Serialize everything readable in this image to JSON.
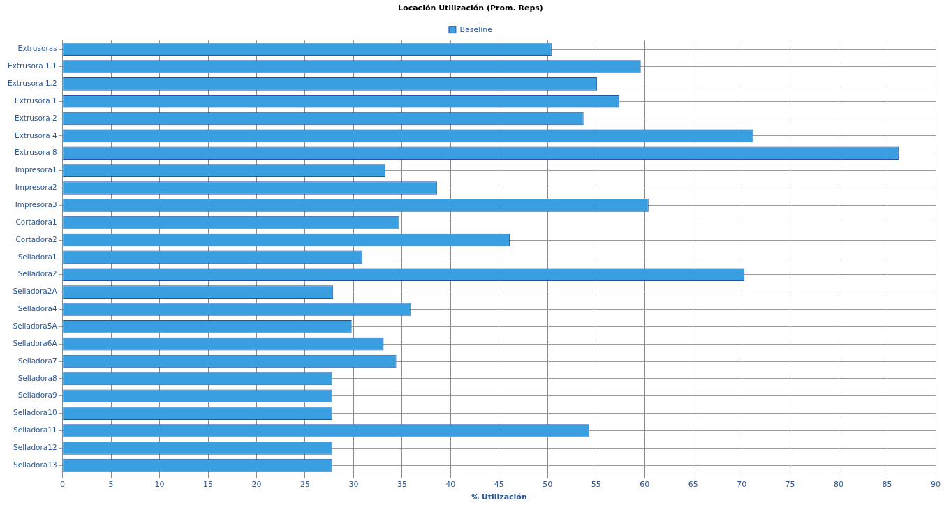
{
  "chart_data": {
    "type": "bar",
    "orientation": "horizontal",
    "title": "Locación Utilización (Prom. Reps)",
    "xlabel": "% Utilización",
    "categories": [
      "Extrusoras",
      "Extrusora 1.1",
      "Extrusora 1.2",
      "Extrusora 1",
      "Extrusora 2",
      "Extrusora 4",
      "Extrusora 8",
      "Impresora1",
      "Impresora2",
      "Impresora3",
      "Cortadora1",
      "Cortadora2",
      "Selladora1",
      "Selladora2",
      "Selladora2A",
      "Selladora4",
      "Selladora5A",
      "Selladora6A",
      "Selladora7",
      "Selladora8",
      "Selladora9",
      "Selladora10",
      "Selladora11",
      "Selladora12",
      "Selladora13"
    ],
    "series": [
      {
        "name": "Baseline",
        "color": "#3a9fe0",
        "values": [
          50.4,
          59.6,
          55.1,
          57.4,
          53.7,
          71.2,
          86.2,
          33.3,
          38.6,
          60.4,
          34.7,
          46.1,
          30.9,
          70.3,
          27.9,
          35.9,
          29.8,
          33.1,
          34.4,
          27.8,
          27.8,
          27.8,
          54.3,
          27.8,
          27.8
        ]
      }
    ],
    "xlim": [
      0,
      90
    ],
    "xticks": [
      0,
      5,
      10,
      15,
      20,
      25,
      30,
      35,
      40,
      45,
      50,
      55,
      60,
      65,
      70,
      75,
      80,
      85,
      90
    ],
    "grid": true,
    "legend": "top"
  }
}
